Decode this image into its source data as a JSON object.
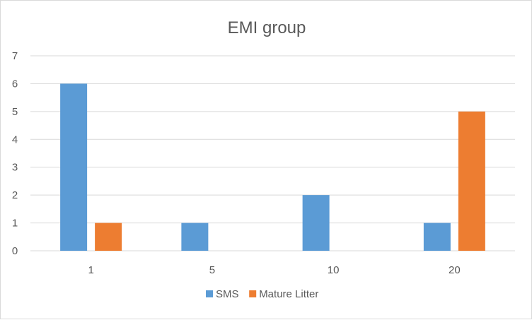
{
  "chart_data": {
    "type": "bar",
    "title": "EMI group",
    "categories": [
      "1",
      "5",
      "10",
      "20"
    ],
    "series": [
      {
        "name": "SMS",
        "values": [
          6,
          1,
          2,
          1
        ],
        "color": "#5b9bd5"
      },
      {
        "name": "Mature Litter",
        "values": [
          1,
          0,
          0,
          5
        ],
        "color": "#ed7d31"
      }
    ],
    "ylim": [
      0,
      7
    ],
    "y_ticks": [
      "0",
      "1",
      "2",
      "3",
      "4",
      "5",
      "6",
      "7"
    ],
    "grid": true,
    "legend_position": "bottom",
    "gridline_color": "#d9d9d9"
  }
}
